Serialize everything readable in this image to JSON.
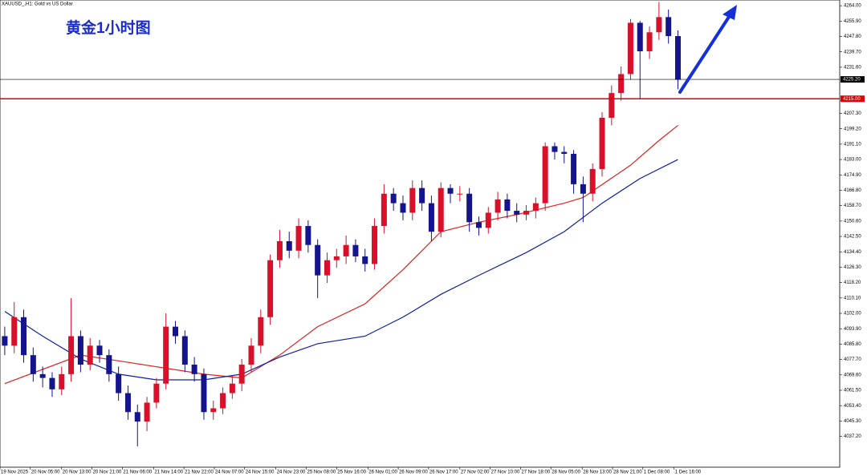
{
  "chart_data": {
    "type": "candlestick",
    "symbol": "XAUUSD_,H1: Gold vs US Dollar",
    "title": "黄金1小时图",
    "up_color": "#d8102a",
    "down_color": "#14148c",
    "open": [
      4090,
      4085,
      4100,
      4080,
      4070,
      4068,
      4062,
      4070,
      4090,
      4075,
      4085,
      4080,
      4070,
      4060,
      4050,
      4045,
      4055,
      4065,
      4095,
      4090,
      4075,
      4070,
      4050,
      4052,
      4060,
      4065,
      4075,
      4085,
      4100,
      4130,
      4140,
      4135,
      4148,
      4138,
      4122,
      4130,
      4132,
      4138,
      4132,
      4128,
      4148,
      4165,
      4160,
      4155,
      4168,
      4160,
      4145,
      4168,
      4165,
      4165,
      4150,
      4147,
      4155,
      4162,
      4156,
      4154,
      4156,
      4160,
      4190,
      4187,
      4186,
      4170,
      4165,
      4178,
      4205,
      4218,
      4228,
      4255,
      4240,
      4250,
      4258,
      4248
    ],
    "high": [
      4095,
      4108,
      4104,
      4084,
      4074,
      4071,
      4074,
      4110,
      4093,
      4089,
      4088,
      4083,
      4074,
      4064,
      4054,
      4058,
      4068,
      4102,
      4098,
      4093,
      4079,
      4073,
      4056,
      4063,
      4069,
      4078,
      4089,
      4104,
      4133,
      4146,
      4145,
      4152,
      4151,
      4141,
      4134,
      4136,
      4143,
      4141,
      4136,
      4152,
      4170,
      4168,
      4164,
      4172,
      4172,
      4164,
      4171,
      4170,
      4169,
      4168,
      4153,
      4158,
      4166,
      4165,
      4160,
      4159,
      4163,
      4192,
      4192,
      4190,
      4188,
      4174,
      4181,
      4208,
      4222,
      4232,
      4257,
      4256,
      4253,
      4266,
      4262,
      4251
    ],
    "low": [
      4080,
      4081,
      4076,
      4066,
      4063,
      4058,
      4059,
      4066,
      4071,
      4072,
      4076,
      4066,
      4056,
      4046,
      4032,
      4040,
      4052,
      4062,
      4086,
      4071,
      4066,
      4046,
      4046,
      4049,
      4057,
      4061,
      4071,
      4081,
      4096,
      4126,
      4131,
      4131,
      4134,
      4110,
      4118,
      4126,
      4128,
      4129,
      4124,
      4125,
      4144,
      4156,
      4151,
      4151,
      4156,
      4140,
      4142,
      4160,
      4161,
      4145,
      4143,
      4144,
      4151,
      4152,
      4150,
      4151,
      4152,
      4156,
      4183,
      4181,
      4165,
      4150,
      4161,
      4174,
      4201,
      4214,
      4225,
      4215,
      4236,
      4246,
      4244,
      4220
    ],
    "close": [
      4085,
      4100,
      4080,
      4070,
      4068,
      4062,
      4070,
      4090,
      4075,
      4085,
      4080,
      4070,
      4060,
      4050,
      4045,
      4055,
      4065,
      4095,
      4090,
      4075,
      4070,
      4050,
      4052,
      4060,
      4065,
      4075,
      4085,
      4100,
      4130,
      4140,
      4135,
      4148,
      4138,
      4122,
      4130,
      4132,
      4138,
      4132,
      4128,
      4148,
      4165,
      4160,
      4155,
      4168,
      4160,
      4145,
      4168,
      4165,
      4165,
      4150,
      4147,
      4155,
      4162,
      4156,
      4154,
      4156,
      4160,
      4190,
      4187,
      4186,
      4170,
      4165,
      4178,
      4205,
      4218,
      4228,
      4255,
      4240,
      4250,
      4258,
      4248,
      4225
    ],
    "lines": [
      {
        "color": "#e02020",
        "x": [
          0,
          8,
          12,
          21,
          25,
          29,
          33,
          38,
          42,
          46,
          50,
          54,
          59,
          61,
          66,
          69,
          71
        ],
        "values": [
          4065,
          4080,
          4077,
          4070,
          4068,
          4080,
          4095,
          4107,
          4125,
          4145,
          4150,
          4154,
          4160,
          4163,
          4180,
          4193,
          4201
        ]
      },
      {
        "color": "#1020a0",
        "x": [
          0,
          4,
          8,
          12,
          16,
          21,
          25,
          29,
          33,
          38,
          42,
          46,
          50,
          55,
          59,
          63,
          67,
          71
        ],
        "values": [
          4103,
          4090,
          4078,
          4070,
          4067,
          4067,
          4070,
          4079,
          4086,
          4090,
          4100,
          4112,
          4122,
          4134,
          4145,
          4160,
          4173,
          4183
        ]
      }
    ],
    "price_lines": [
      {
        "value": 4225.2,
        "label": "4225.20",
        "color": "#000000"
      },
      {
        "value": 4215,
        "label": "4215.00",
        "color": "#e00000"
      }
    ],
    "xlim": [
      -0.5,
      88.06
    ],
    "ylim": [
      4021,
      4267
    ],
    "xticks": [
      {
        "value": -0.5,
        "label": "19 Nov 2025"
      },
      {
        "value": 2.7,
        "label": "20 Nov 05:00"
      },
      {
        "value": 6.0,
        "label": "20 Nov 13:00"
      },
      {
        "value": 9.2,
        "label": "20 Nov 21:00"
      },
      {
        "value": 12.4,
        "label": "21 Nov 06:00"
      },
      {
        "value": 15.7,
        "label": "21 Nov 14:00"
      },
      {
        "value": 18.9,
        "label": "21 Nov 22:00"
      },
      {
        "value": 22.1,
        "label": "24 Nov 07:00"
      },
      {
        "value": 25.3,
        "label": "24 Nov 15:00"
      },
      {
        "value": 28.6,
        "label": "24 Nov 23:00"
      },
      {
        "value": 31.8,
        "label": "25 Nov 08:00"
      },
      {
        "value": 35.0,
        "label": "25 Nov 16:00"
      },
      {
        "value": 38.3,
        "label": "26 Nov 01:00"
      },
      {
        "value": 41.5,
        "label": "26 Nov 09:00"
      },
      {
        "value": 44.7,
        "label": "26 Nov 17:00"
      },
      {
        "value": 48.0,
        "label": "27 Nov 02:00"
      },
      {
        "value": 51.2,
        "label": "27 Nov 10:00"
      },
      {
        "value": 54.4,
        "label": "27 Nov 18:00"
      },
      {
        "value": 57.6,
        "label": "28 Nov 05:00"
      },
      {
        "value": 60.9,
        "label": "28 Nov 13:00"
      },
      {
        "value": 64.1,
        "label": "28 Nov 21:00"
      },
      {
        "value": 67.3,
        "label": "1 Dec 08:00"
      },
      {
        "value": 70.6,
        "label": "1 Dec 16:00"
      }
    ],
    "yticks": [
      {
        "value": 4264,
        "label": "4264.00"
      },
      {
        "value": 4255.9,
        "label": "4255.90"
      },
      {
        "value": 4247.8,
        "label": "4247.80"
      },
      {
        "value": 4239.7,
        "label": "4239.70"
      },
      {
        "value": 4231.6,
        "label": "4231.60"
      },
      {
        "value": 4207.3,
        "label": "4207.30"
      },
      {
        "value": 4199.2,
        "label": "4199.20"
      },
      {
        "value": 4191.1,
        "label": "4191.10"
      },
      {
        "value": 4183,
        "label": "4183.00"
      },
      {
        "value": 4174.9,
        "label": "4174.90"
      },
      {
        "value": 4166.8,
        "label": "4166.80"
      },
      {
        "value": 4158.7,
        "label": "4158.70"
      },
      {
        "value": 4150.6,
        "label": "4150.60"
      },
      {
        "value": 4142.5,
        "label": "4142.50"
      },
      {
        "value": 4134.4,
        "label": "4134.40"
      },
      {
        "value": 4126.3,
        "label": "4126.30"
      },
      {
        "value": 4118.2,
        "label": "4118.20"
      },
      {
        "value": 4110.1,
        "label": "4110.10"
      },
      {
        "value": 4102,
        "label": "4102.00"
      },
      {
        "value": 4093.9,
        "label": "4093.90"
      },
      {
        "value": 4085.8,
        "label": "4085.80"
      },
      {
        "value": 4077.7,
        "label": "4077.70"
      },
      {
        "value": 4069.6,
        "label": "4069.60"
      },
      {
        "value": 4061.5,
        "label": "4061.50"
      },
      {
        "value": 4053.4,
        "label": "4053.40"
      },
      {
        "value": 4045.3,
        "label": "4045.30"
      },
      {
        "value": 4037.2,
        "label": "4037.20"
      }
    ]
  }
}
